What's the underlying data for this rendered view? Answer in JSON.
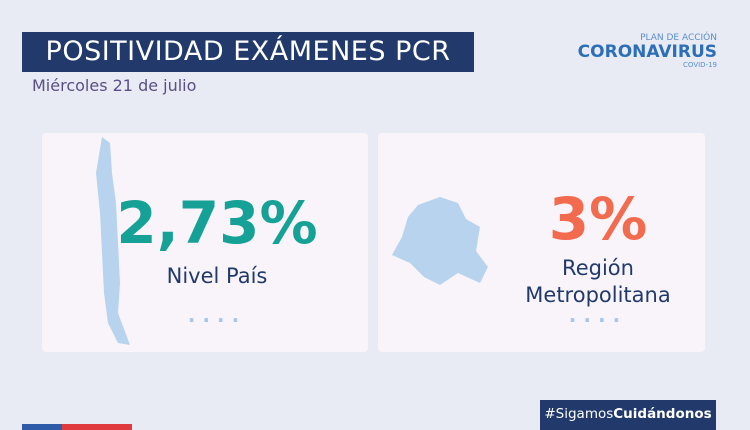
{
  "header": {
    "title": "POSITIVIDAD EXÁMENES PCR",
    "date": "Miércoles 21 de julio"
  },
  "logo": {
    "top": "PLAN DE ACCIÓN",
    "main": "CORONAVIRUS",
    "sub": "COVID-19"
  },
  "cards": [
    {
      "value": "2,73%",
      "label": [
        "Nivel País"
      ]
    },
    {
      "value": "3%",
      "label": [
        "Región",
        "Metropolitana"
      ]
    }
  ],
  "footer": {
    "hashtag": [
      "#Sigamos",
      "Cuidándonos"
    ]
  }
}
